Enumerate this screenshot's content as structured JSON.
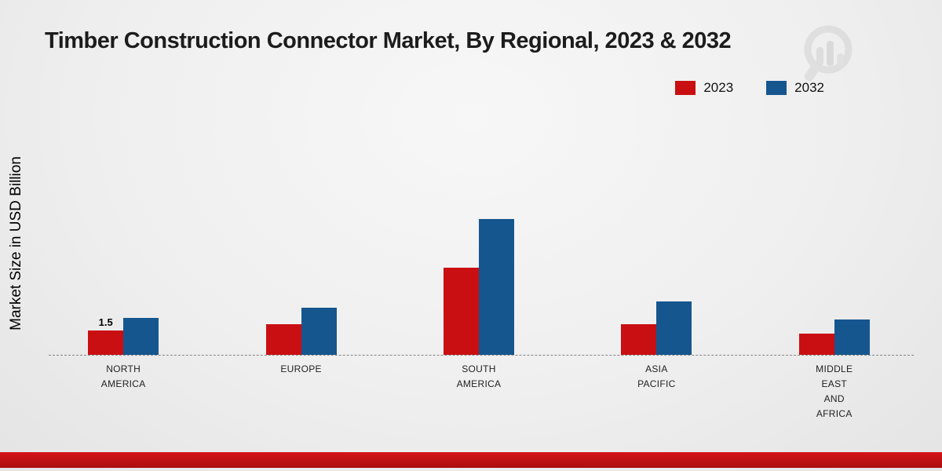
{
  "chart": {
    "title": "Timber Construction Connector Market, By Regional, 2023 & 2032",
    "ylabel": "Market Size in USD Billion"
  },
  "legend": {
    "items": [
      {
        "label": "2023",
        "color": "#c90f12"
      },
      {
        "label": "2032",
        "color": "#15568f"
      }
    ]
  },
  "chart_data": {
    "type": "bar",
    "title": "Timber Construction Connector Market, By Regional, 2023 & 2032",
    "xlabel": "",
    "ylabel": "Market Size in USD Billion",
    "categories": [
      "NORTH AMERICA",
      "EUROPE",
      "SOUTH AMERICA",
      "ASIA PACIFIC",
      "MIDDLE EAST AND AFRICA"
    ],
    "category_lines": [
      [
        "NORTH",
        "AMERICA"
      ],
      [
        "EUROPE"
      ],
      [
        "SOUTH",
        "AMERICA"
      ],
      [
        "ASIA",
        "PACIFIC"
      ],
      [
        "MIDDLE",
        "EAST",
        "AND",
        "AFRICA"
      ]
    ],
    "series": [
      {
        "name": "2023",
        "color": "#c90f12",
        "values": [
          1.5,
          1.9,
          5.4,
          1.9,
          1.3
        ],
        "labels": [
          "1.5",
          "",
          "",
          "",
          ""
        ]
      },
      {
        "name": "2032",
        "color": "#15568f",
        "values": [
          2.3,
          2.9,
          8.4,
          3.3,
          2.2
        ],
        "labels": [
          "",
          "",
          "",
          "",
          ""
        ]
      }
    ],
    "ylim": [
      0,
      9
    ],
    "grid": false,
    "legend_position": "top-right",
    "baseline_style": "dashed",
    "data_label_note": "only North America 2023 bar shows value 1.5"
  },
  "footer": {
    "color_top": "#d31418",
    "color_bottom": "#ab0e11"
  },
  "watermark": {
    "name": "ghost-logo",
    "color": "#d2d2d2"
  }
}
